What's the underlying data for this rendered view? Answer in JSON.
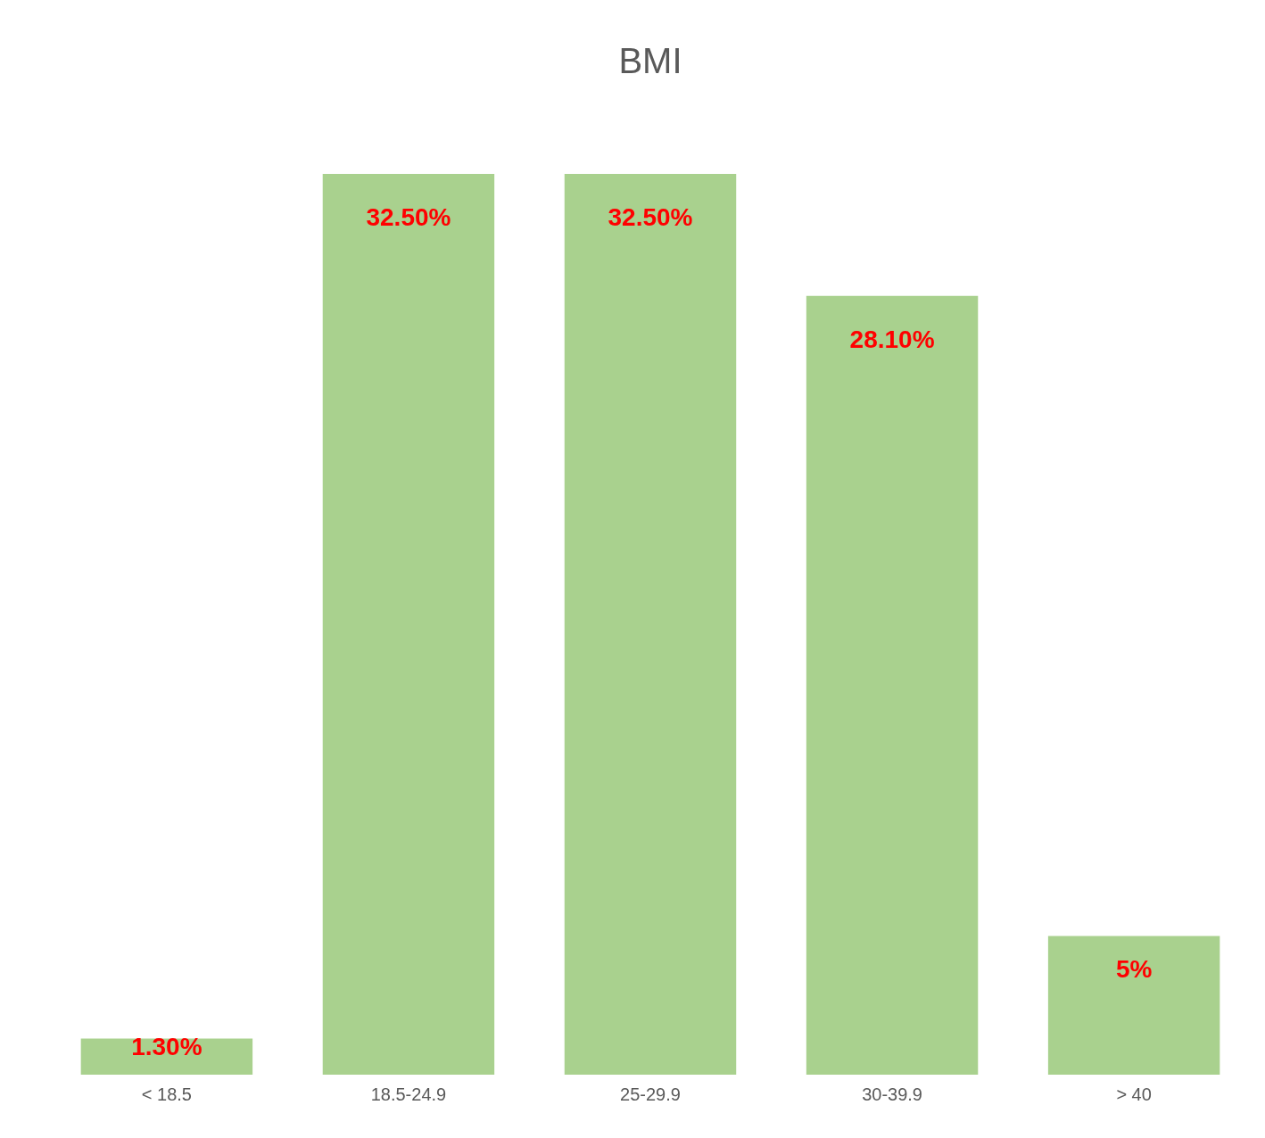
{
  "chart_data": {
    "type": "bar",
    "title": "BMI",
    "categories": [
      "< 18.5",
      "18.5-24.9",
      "25-29.9",
      "30-39.9",
      "> 40"
    ],
    "values": [
      1.3,
      32.5,
      32.5,
      28.1,
      5
    ],
    "value_labels": [
      "1.30%",
      "32.50%",
      "32.50%",
      "28.10%",
      "5%"
    ],
    "color": "#a9d18e"
  }
}
